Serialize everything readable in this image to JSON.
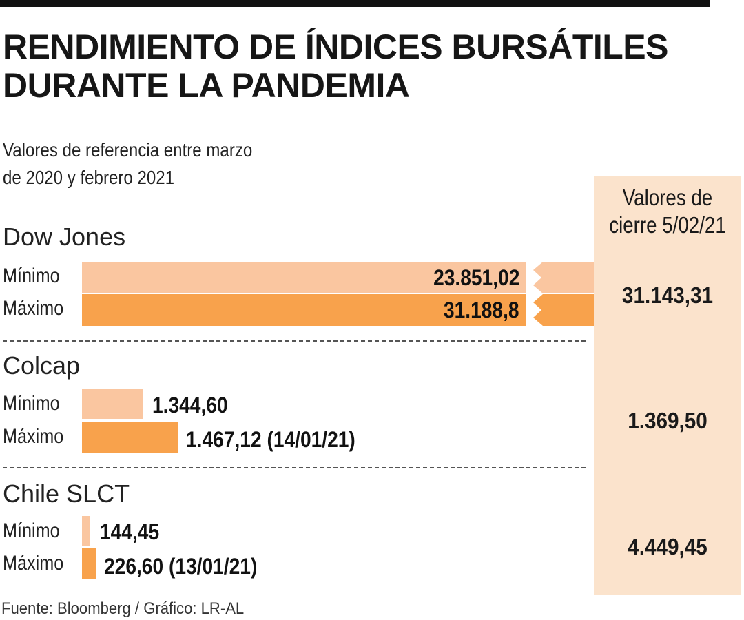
{
  "title_line1": "RENDIMIENTO DE ÍNDICES BURSÁTILES",
  "title_line2": "DURANTE LA PANDEMIA",
  "subtitle_line1": "Valores de referencia entre marzo",
  "subtitle_line2": "de 2020 y febrero 2021",
  "closing_header_line1": "Valores de",
  "closing_header_line2": "cierre 5/02/21",
  "source": "Fuente: Bloomberg / Gráfico: LR-AL",
  "colors": {
    "minimo": "#fac6a0",
    "maximo": "#f8a24c",
    "panel": "#fbe3cc"
  },
  "chart_data": {
    "type": "bar",
    "orientation": "horizontal",
    "title": "RENDIMIENTO DE ÍNDICES BURSÁTILES DURANTE LA PANDEMIA",
    "subtitle": "Valores de referencia entre marzo de 2020 y febrero 2021",
    "series_names": [
      "Mínimo",
      "Máximo"
    ],
    "indices": [
      {
        "name": "Dow Jones",
        "broken_axis": true,
        "minimo": {
          "label": "Mínimo",
          "value": 23851.02,
          "text": "23.851,02"
        },
        "maximo": {
          "label": "Máximo",
          "value": 31188.8,
          "text": "31.188,8"
        },
        "closing": "31.143,31"
      },
      {
        "name": "Colcap",
        "broken_axis": false,
        "minimo": {
          "label": "Mínimo",
          "value": 1344.6,
          "text": "1.344,60"
        },
        "maximo": {
          "label": "Máximo",
          "value": 1467.12,
          "text": "1.467,12 (14/01/21)"
        },
        "closing": "1.369,50"
      },
      {
        "name": "Chile SLCT",
        "broken_axis": false,
        "minimo": {
          "label": "Mínimo",
          "value": 144.45,
          "text": "144,45"
        },
        "maximo": {
          "label": "Máximo",
          "value": 226.6,
          "text": "226,60 (13/01/21)"
        },
        "closing": "4.449,45"
      }
    ]
  }
}
